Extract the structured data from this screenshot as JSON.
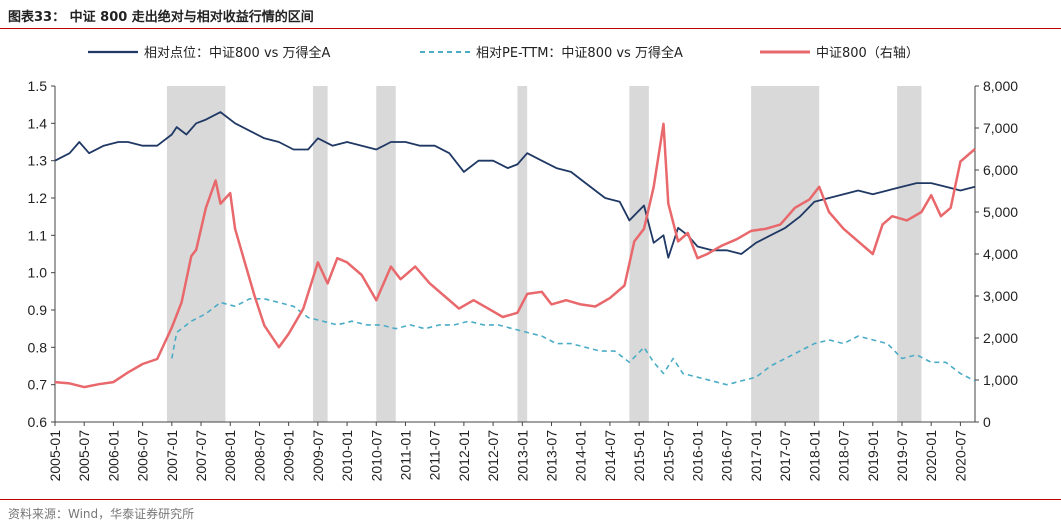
{
  "figure": {
    "title": "图表33： 中证 800 走出绝对与相对收益行情的区间",
    "source": "资料来源：Wind，华泰证券研究所"
  },
  "colors": {
    "relative_price": "#1f3864",
    "relative_pe": "#4bacc6",
    "index": "#e8686c",
    "shade": "#d9d9d9",
    "rule": "#c00000"
  },
  "chart_data": {
    "type": "line",
    "title": "图表33： 中证 800 走出绝对与相对收益行情的区间",
    "xlabel": "",
    "ylabel_left": "",
    "ylabel_right": "",
    "ylim_left": [
      0.6,
      1.5
    ],
    "ylim_right": [
      0,
      8000
    ],
    "yticks_left": [
      "1.5",
      "1.4",
      "1.3",
      "1.2",
      "1.1",
      "1.0",
      "0.9",
      "0.8",
      "0.7",
      "0.6"
    ],
    "yticks_right": [
      "8,000",
      "7,000",
      "6,000",
      "5,000",
      "4,000",
      "3,000",
      "2,000",
      "1,000",
      "0"
    ],
    "x_ticks": [
      "2005-01",
      "2005-07",
      "2006-01",
      "2006-07",
      "2007-01",
      "2007-07",
      "2008-01",
      "2008-07",
      "2009-01",
      "2009-07",
      "2010-01",
      "2010-07",
      "2011-01",
      "2011-07",
      "2012-01",
      "2012-07",
      "2013-01",
      "2013-07",
      "2014-01",
      "2014-07",
      "2015-01",
      "2015-07",
      "2016-01",
      "2016-07",
      "2017-01",
      "2017-07",
      "2018-01",
      "2018-07",
      "2019-01",
      "2019-07",
      "2020-01",
      "2020-07"
    ],
    "x_range": [
      "2005-01",
      "2020-10"
    ],
    "legend_position": "top",
    "grid": false,
    "shaded_periods": [
      {
        "start": "2006-12",
        "end": "2007-12"
      },
      {
        "start": "2009-06",
        "end": "2009-09"
      },
      {
        "start": "2010-07",
        "end": "2010-11"
      },
      {
        "start": "2012-12",
        "end": "2013-02"
      },
      {
        "start": "2014-11",
        "end": "2015-03"
      },
      {
        "start": "2016-12",
        "end": "2018-02"
      },
      {
        "start": "2019-06",
        "end": "2019-11"
      }
    ],
    "series": [
      {
        "name": "相对点位：中证800 vs 万得全A",
        "axis": "left",
        "style": "solid",
        "points": [
          [
            "2005-01",
            1.3
          ],
          [
            "2005-04",
            1.32
          ],
          [
            "2005-06",
            1.35
          ],
          [
            "2005-08",
            1.32
          ],
          [
            "2005-11",
            1.34
          ],
          [
            "2006-02",
            1.35
          ],
          [
            "2006-04",
            1.35
          ],
          [
            "2006-07",
            1.34
          ],
          [
            "2006-10",
            1.34
          ],
          [
            "2007-01",
            1.37
          ],
          [
            "2007-02",
            1.39
          ],
          [
            "2007-04",
            1.37
          ],
          [
            "2007-06",
            1.4
          ],
          [
            "2007-08",
            1.41
          ],
          [
            "2007-11",
            1.43
          ],
          [
            "2008-02",
            1.4
          ],
          [
            "2008-05",
            1.38
          ],
          [
            "2008-08",
            1.36
          ],
          [
            "2008-11",
            1.35
          ],
          [
            "2009-02",
            1.33
          ],
          [
            "2009-05",
            1.33
          ],
          [
            "2009-07",
            1.36
          ],
          [
            "2009-10",
            1.34
          ],
          [
            "2010-01",
            1.35
          ],
          [
            "2010-04",
            1.34
          ],
          [
            "2010-07",
            1.33
          ],
          [
            "2010-10",
            1.35
          ],
          [
            "2011-01",
            1.35
          ],
          [
            "2011-04",
            1.34
          ],
          [
            "2011-07",
            1.34
          ],
          [
            "2011-10",
            1.32
          ],
          [
            "2012-01",
            1.27
          ],
          [
            "2012-04",
            1.3
          ],
          [
            "2012-07",
            1.3
          ],
          [
            "2012-10",
            1.28
          ],
          [
            "2012-12",
            1.29
          ],
          [
            "2013-02",
            1.32
          ],
          [
            "2013-05",
            1.3
          ],
          [
            "2013-08",
            1.28
          ],
          [
            "2013-11",
            1.27
          ],
          [
            "2014-02",
            1.24
          ],
          [
            "2014-06",
            1.2
          ],
          [
            "2014-09",
            1.19
          ],
          [
            "2014-11",
            1.14
          ],
          [
            "2015-02",
            1.18
          ],
          [
            "2015-04",
            1.08
          ],
          [
            "2015-06",
            1.1
          ],
          [
            "2015-07",
            1.04
          ],
          [
            "2015-09",
            1.12
          ],
          [
            "2015-11",
            1.1
          ],
          [
            "2016-01",
            1.07
          ],
          [
            "2016-04",
            1.06
          ],
          [
            "2016-07",
            1.06
          ],
          [
            "2016-10",
            1.05
          ],
          [
            "2017-01",
            1.08
          ],
          [
            "2017-04",
            1.1
          ],
          [
            "2017-07",
            1.12
          ],
          [
            "2017-10",
            1.15
          ],
          [
            "2018-01",
            1.19
          ],
          [
            "2018-04",
            1.2
          ],
          [
            "2018-07",
            1.21
          ],
          [
            "2018-10",
            1.22
          ],
          [
            "2019-01",
            1.21
          ],
          [
            "2019-04",
            1.22
          ],
          [
            "2019-07",
            1.23
          ],
          [
            "2019-10",
            1.24
          ],
          [
            "2020-01",
            1.24
          ],
          [
            "2020-04",
            1.23
          ],
          [
            "2020-07",
            1.22
          ],
          [
            "2020-10",
            1.23
          ]
        ]
      },
      {
        "name": "相对PE-TTM：中证800 vs 万得全A",
        "axis": "left",
        "style": "dashed",
        "points": [
          [
            "2007-01",
            0.77
          ],
          [
            "2007-02",
            0.84
          ],
          [
            "2007-05",
            0.87
          ],
          [
            "2007-08",
            0.89
          ],
          [
            "2007-11",
            0.92
          ],
          [
            "2008-02",
            0.91
          ],
          [
            "2008-05",
            0.93
          ],
          [
            "2008-08",
            0.93
          ],
          [
            "2008-11",
            0.92
          ],
          [
            "2009-02",
            0.91
          ],
          [
            "2009-05",
            0.88
          ],
          [
            "2009-08",
            0.87
          ],
          [
            "2009-11",
            0.86
          ],
          [
            "2010-02",
            0.87
          ],
          [
            "2010-05",
            0.86
          ],
          [
            "2010-08",
            0.86
          ],
          [
            "2010-11",
            0.85
          ],
          [
            "2011-02",
            0.86
          ],
          [
            "2011-05",
            0.85
          ],
          [
            "2011-08",
            0.86
          ],
          [
            "2011-11",
            0.86
          ],
          [
            "2012-02",
            0.87
          ],
          [
            "2012-05",
            0.86
          ],
          [
            "2012-08",
            0.86
          ],
          [
            "2012-11",
            0.85
          ],
          [
            "2013-02",
            0.84
          ],
          [
            "2013-05",
            0.83
          ],
          [
            "2013-08",
            0.81
          ],
          [
            "2013-11",
            0.81
          ],
          [
            "2014-02",
            0.8
          ],
          [
            "2014-05",
            0.79
          ],
          [
            "2014-08",
            0.79
          ],
          [
            "2014-11",
            0.76
          ],
          [
            "2015-02",
            0.8
          ],
          [
            "2015-04",
            0.76
          ],
          [
            "2015-06",
            0.73
          ],
          [
            "2015-08",
            0.77
          ],
          [
            "2015-10",
            0.73
          ],
          [
            "2016-01",
            0.72
          ],
          [
            "2016-04",
            0.71
          ],
          [
            "2016-07",
            0.7
          ],
          [
            "2016-10",
            0.71
          ],
          [
            "2017-01",
            0.72
          ],
          [
            "2017-04",
            0.75
          ],
          [
            "2017-07",
            0.77
          ],
          [
            "2017-10",
            0.79
          ],
          [
            "2018-01",
            0.81
          ],
          [
            "2018-04",
            0.82
          ],
          [
            "2018-07",
            0.81
          ],
          [
            "2018-10",
            0.83
          ],
          [
            "2019-01",
            0.82
          ],
          [
            "2019-04",
            0.81
          ],
          [
            "2019-07",
            0.77
          ],
          [
            "2019-10",
            0.78
          ],
          [
            "2020-01",
            0.76
          ],
          [
            "2020-04",
            0.76
          ],
          [
            "2020-07",
            0.73
          ],
          [
            "2020-10",
            0.71
          ]
        ]
      },
      {
        "name": "中证800（右轴）",
        "axis": "right",
        "style": "solid",
        "points": [
          [
            "2005-01",
            950
          ],
          [
            "2005-04",
            920
          ],
          [
            "2005-07",
            830
          ],
          [
            "2005-10",
            900
          ],
          [
            "2006-01",
            950
          ],
          [
            "2006-04",
            1180
          ],
          [
            "2006-07",
            1380
          ],
          [
            "2006-10",
            1500
          ],
          [
            "2007-01",
            2250
          ],
          [
            "2007-03",
            2850
          ],
          [
            "2007-05",
            3950
          ],
          [
            "2007-06",
            4100
          ],
          [
            "2007-08",
            5100
          ],
          [
            "2007-10",
            5750
          ],
          [
            "2007-11",
            5200
          ],
          [
            "2008-01",
            5450
          ],
          [
            "2008-02",
            4600
          ],
          [
            "2008-04",
            3800
          ],
          [
            "2008-06",
            3000
          ],
          [
            "2008-08",
            2300
          ],
          [
            "2008-11",
            1780
          ],
          [
            "2009-01",
            2100
          ],
          [
            "2009-04",
            2700
          ],
          [
            "2009-07",
            3800
          ],
          [
            "2009-09",
            3300
          ],
          [
            "2009-11",
            3900
          ],
          [
            "2010-01",
            3800
          ],
          [
            "2010-04",
            3500
          ],
          [
            "2010-07",
            2900
          ],
          [
            "2010-10",
            3700
          ],
          [
            "2010-12",
            3400
          ],
          [
            "2011-03",
            3700
          ],
          [
            "2011-06",
            3300
          ],
          [
            "2011-09",
            3000
          ],
          [
            "2011-12",
            2700
          ],
          [
            "2012-03",
            2900
          ],
          [
            "2012-06",
            2700
          ],
          [
            "2012-09",
            2500
          ],
          [
            "2012-12",
            2600
          ],
          [
            "2013-02",
            3050
          ],
          [
            "2013-05",
            3100
          ],
          [
            "2013-07",
            2800
          ],
          [
            "2013-10",
            2900
          ],
          [
            "2014-01",
            2800
          ],
          [
            "2014-04",
            2750
          ],
          [
            "2014-07",
            2950
          ],
          [
            "2014-10",
            3250
          ],
          [
            "2014-12",
            4300
          ],
          [
            "2015-02",
            4600
          ],
          [
            "2015-04",
            5600
          ],
          [
            "2015-06",
            7100
          ],
          [
            "2015-07",
            5200
          ],
          [
            "2015-09",
            4300
          ],
          [
            "2015-11",
            4500
          ],
          [
            "2016-01",
            3900
          ],
          [
            "2016-03",
            4000
          ],
          [
            "2016-06",
            4200
          ],
          [
            "2016-09",
            4350
          ],
          [
            "2016-12",
            4550
          ],
          [
            "2017-03",
            4600
          ],
          [
            "2017-06",
            4700
          ],
          [
            "2017-09",
            5100
          ],
          [
            "2017-12",
            5300
          ],
          [
            "2018-02",
            5600
          ],
          [
            "2018-04",
            5000
          ],
          [
            "2018-07",
            4600
          ],
          [
            "2018-10",
            4300
          ],
          [
            "2019-01",
            4000
          ],
          [
            "2019-03",
            4700
          ],
          [
            "2019-05",
            4900
          ],
          [
            "2019-08",
            4800
          ],
          [
            "2019-11",
            5000
          ],
          [
            "2020-01",
            5400
          ],
          [
            "2020-03",
            4900
          ],
          [
            "2020-05",
            5100
          ],
          [
            "2020-07",
            6200
          ],
          [
            "2020-10",
            6500
          ]
        ]
      }
    ]
  }
}
